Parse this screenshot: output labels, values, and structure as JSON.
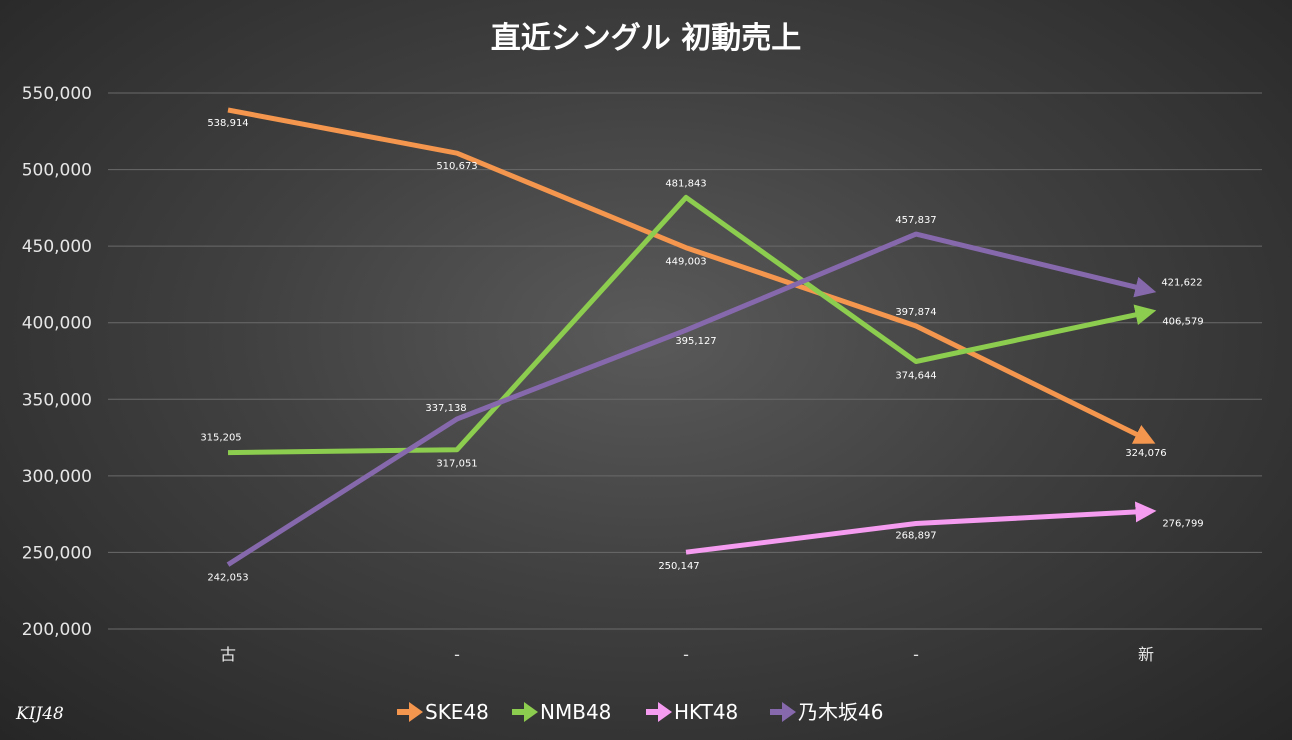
{
  "chart_data": {
    "type": "line",
    "title": "直近シングル 初動売上",
    "categories": [
      "古",
      "-",
      "-",
      "-",
      "新"
    ],
    "ylim": [
      200000,
      550000
    ],
    "yticks": [
      200000,
      250000,
      300000,
      350000,
      400000,
      450000,
      500000,
      550000
    ],
    "ytick_labels": [
      "200,000",
      "250,000",
      "300,000",
      "350,000",
      "400,000",
      "450,000",
      "500,000",
      "550,000"
    ],
    "grid": true,
    "legend_position": "bottom",
    "series": [
      {
        "name": "SKE48",
        "color": "#f4964d",
        "values": [
          538914,
          510673,
          449003,
          397874,
          324076
        ],
        "labels": [
          "538,914",
          "510,673",
          "449,003",
          "397,874",
          "324,076"
        ]
      },
      {
        "name": "NMB48",
        "color": "#8ccc4e",
        "values": [
          315205,
          317051,
          481843,
          374644,
          406579
        ],
        "labels": [
          "315,205",
          "317,051",
          "481,843",
          "374,644",
          "406,579"
        ]
      },
      {
        "name": "HKT48",
        "color": "#f59bf0",
        "values": [
          null,
          null,
          250147,
          268897,
          276799
        ],
        "labels": [
          null,
          null,
          "250,147",
          "268,897",
          "276,799"
        ]
      },
      {
        "name": "乃木坂46",
        "color": "#8668ad",
        "values": [
          242053,
          337138,
          395127,
          457837,
          421622
        ],
        "labels": [
          "242,053",
          "337,138",
          "395,127",
          "457,837",
          "421,622"
        ]
      }
    ]
  },
  "watermark": "KIJ48"
}
